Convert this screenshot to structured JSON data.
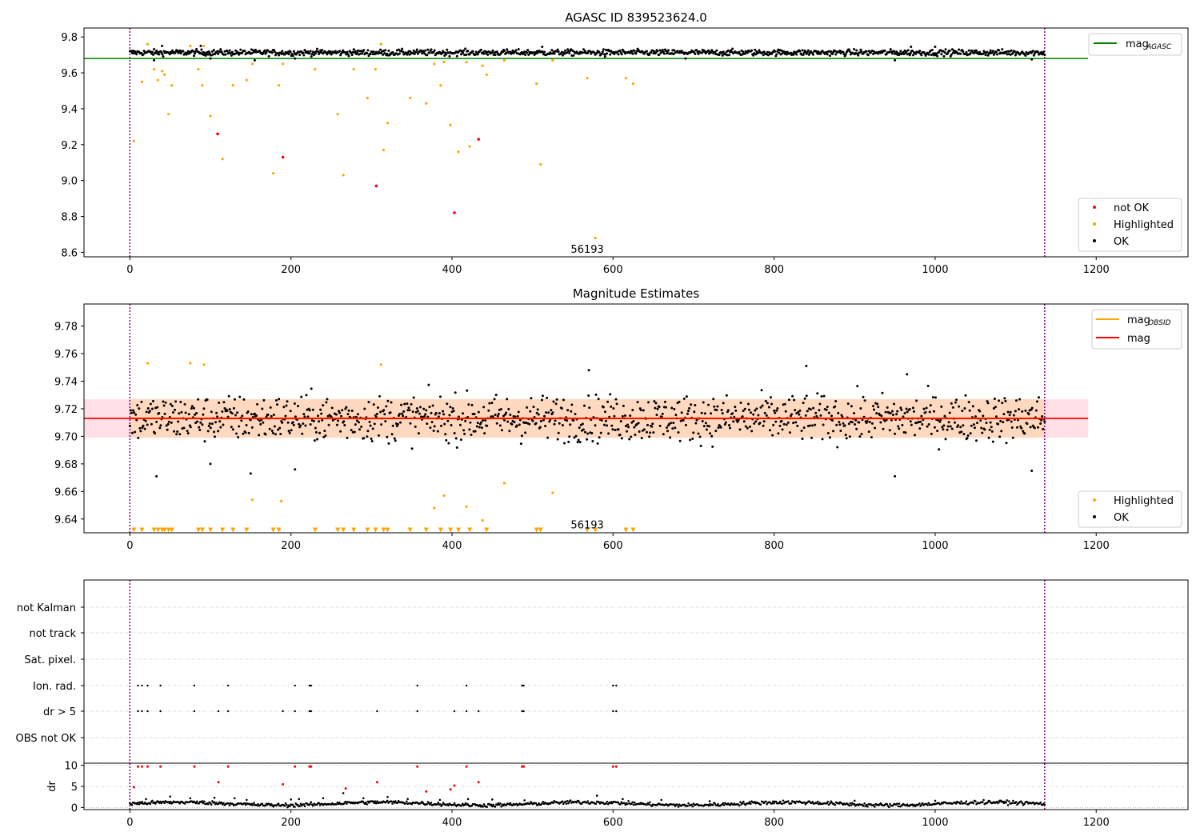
{
  "chart_data": [
    {
      "type": "scatter",
      "title": "AGASC ID 839523624.0",
      "xlim": [
        -57,
        1314
      ],
      "ylim": [
        8.575,
        9.85
      ],
      "xticks": [
        "0",
        "200",
        "400",
        "600",
        "800",
        "1000",
        "1200"
      ],
      "yticks": [
        "8.6",
        "8.8",
        "9.0",
        "9.2",
        "9.4",
        "9.6",
        "9.8"
      ],
      "ytick_values": [
        8.6,
        8.8,
        9.0,
        9.2,
        9.4,
        9.6,
        9.8
      ],
      "vlines": [
        0,
        1136
      ],
      "hline": {
        "label": "mag",
        "sub": "AGASC",
        "y": 9.68,
        "xmax": 1190,
        "color": "#008000"
      },
      "annotation": {
        "text": "56193",
        "x": 568,
        "y": 8.62
      },
      "legend_line_position": "upper right",
      "legend_points_position": "lower right",
      "series": [
        {
          "name": "not OK",
          "color": "#ff0000",
          "points": [
            [
              109,
              9.26
            ],
            [
              190,
              9.13
            ],
            [
              306,
              8.97
            ],
            [
              403,
              8.82
            ],
            [
              433,
              9.23
            ]
          ]
        },
        {
          "name": "Highlighted",
          "color": "#ffa500",
          "points": [
            [
              5,
              9.22
            ],
            [
              15,
              9.55
            ],
            [
              22,
              9.76
            ],
            [
              30,
              9.62
            ],
            [
              35,
              9.56
            ],
            [
              40,
              9.61
            ],
            [
              43,
              9.59
            ],
            [
              48,
              9.37
            ],
            [
              52,
              9.53
            ],
            [
              75,
              9.75
            ],
            [
              85,
              9.62
            ],
            [
              90,
              9.53
            ],
            [
              92,
              9.75
            ],
            [
              100,
              9.36
            ],
            [
              115,
              9.12
            ],
            [
              128,
              9.53
            ],
            [
              145,
              9.56
            ],
            [
              152,
              9.65
            ],
            [
              178,
              9.04
            ],
            [
              185,
              9.53
            ],
            [
              190,
              9.65
            ],
            [
              230,
              9.62
            ],
            [
              258,
              9.37
            ],
            [
              265,
              9.03
            ],
            [
              278,
              9.62
            ],
            [
              295,
              9.46
            ],
            [
              305,
              9.62
            ],
            [
              312,
              9.76
            ],
            [
              315,
              9.17
            ],
            [
              320,
              9.32
            ],
            [
              348,
              9.46
            ],
            [
              368,
              9.43
            ],
            [
              378,
              9.65
            ],
            [
              386,
              9.53
            ],
            [
              390,
              9.66
            ],
            [
              398,
              9.31
            ],
            [
              408,
              9.16
            ],
            [
              418,
              9.66
            ],
            [
              422,
              9.19
            ],
            [
              438,
              9.64
            ],
            [
              443,
              9.59
            ],
            [
              465,
              9.67
            ],
            [
              505,
              9.54
            ],
            [
              510,
              9.09
            ],
            [
              525,
              9.67
            ],
            [
              568,
              9.57
            ],
            [
              578,
              8.68
            ],
            [
              616,
              9.57
            ],
            [
              625,
              9.54
            ]
          ]
        },
        {
          "name": "OK",
          "color": "#000000",
          "mean": 9.713,
          "sd": 0.013,
          "xmin": 0,
          "xmax": 1136,
          "n": 1100,
          "outliers": [
            [
              30,
              9.67
            ],
            [
              100,
              9.68
            ],
            [
              155,
              9.67
            ],
            [
              205,
              9.68
            ],
            [
              590,
              9.69
            ],
            [
              690,
              9.68
            ],
            [
              950,
              9.67
            ],
            [
              1120,
              9.675
            ],
            [
              40,
              9.75
            ],
            [
              88,
              9.75
            ],
            [
              512,
              9.745
            ],
            [
              970,
              9.745
            ],
            [
              1000,
              9.745
            ]
          ]
        }
      ]
    },
    {
      "type": "scatter",
      "title": "Magnitude Estimates",
      "xlim": [
        -57,
        1314
      ],
      "ylim": [
        9.63,
        9.796
      ],
      "xticks": [
        "0",
        "200",
        "400",
        "600",
        "800",
        "1000",
        "1200"
      ],
      "yticks": [
        "9.64",
        "9.66",
        "9.68",
        "9.70",
        "9.72",
        "9.74",
        "9.76",
        "9.78"
      ],
      "ytick_values": [
        9.64,
        9.66,
        9.68,
        9.7,
        9.72,
        9.74,
        9.76,
        9.78
      ],
      "vlines": [
        0,
        1136
      ],
      "lines": [
        {
          "label": "mag",
          "sub": "OBSID",
          "y": 9.713,
          "x0": 0,
          "x1": 1136,
          "color": "#ffa500"
        },
        {
          "label": "mag",
          "y": 9.713,
          "x0": -57,
          "x1": 1190,
          "color": "#ff0000"
        }
      ],
      "bands": [
        {
          "y0": 9.699,
          "y1": 9.727,
          "x0": -57,
          "x1": 1190,
          "color": "#ffe0e6"
        },
        {
          "y0": 9.699,
          "y1": 9.727,
          "x0": 0,
          "x1": 1136,
          "color": "#ffd9bf"
        }
      ],
      "annotation": {
        "text": "56193",
        "x": 568,
        "y": 9.636
      },
      "legend_line_position": "upper right",
      "legend_points_position": "lower right",
      "series": [
        {
          "name": "Highlighted",
          "color": "#ffa500",
          "points": [
            [
              22,
              9.753
            ],
            [
              75,
              9.753
            ],
            [
              92,
              9.752
            ],
            [
              312,
              9.752
            ],
            [
              152,
              9.654
            ],
            [
              188,
              9.653
            ],
            [
              378,
              9.648
            ],
            [
              390,
              9.657
            ],
            [
              418,
              9.649
            ],
            [
              438,
              9.639
            ],
            [
              465,
              9.666
            ],
            [
              525,
              9.659
            ]
          ]
        },
        {
          "name": "",
          "color": "#ffa500",
          "marker": "triangle-down",
          "y": 9.632,
          "x": [
            5,
            15,
            30,
            35,
            40,
            43,
            48,
            52,
            85,
            90,
            100,
            115,
            128,
            145,
            178,
            185,
            230,
            258,
            265,
            278,
            295,
            305,
            315,
            320,
            348,
            368,
            386,
            398,
            408,
            422,
            443,
            505,
            510,
            568,
            578,
            616,
            625
          ]
        },
        {
          "name": "OK",
          "color": "#000000",
          "mean": 9.713,
          "sd": 0.013,
          "xmin": 0,
          "xmax": 1136,
          "n": 1100,
          "outliers": [
            [
              33,
              9.671
            ],
            [
              100,
              9.68
            ],
            [
              150,
              9.673
            ],
            [
              205,
              9.676
            ],
            [
              840,
              9.751
            ],
            [
              950,
              9.671
            ],
            [
              1120,
              9.675
            ],
            [
              965,
              9.745
            ],
            [
              570,
              9.748
            ]
          ]
        }
      ]
    },
    {
      "type": "scatter",
      "title": "",
      "xlim": [
        -57,
        1314
      ],
      "categories": [
        "not Kalman",
        "not track",
        "Sat. pixel.",
        "Ion. rad.",
        "dr > 5",
        "OBS not OK"
      ],
      "xticks": [
        "0",
        "200",
        "400",
        "600",
        "800",
        "1000",
        "1200"
      ],
      "vlines": [
        0,
        1136
      ],
      "flags": {
        "Ion. rad.": [
          10,
          15,
          22,
          38,
          80,
          122,
          205,
          223,
          225,
          357,
          418,
          487,
          489,
          600,
          604
        ],
        "dr > 5": [
          10,
          15,
          22,
          38,
          80,
          110,
          122,
          190,
          205,
          223,
          225,
          307,
          357,
          403,
          418,
          433,
          487,
          489,
          600,
          604
        ]
      }
    },
    {
      "type": "scatter",
      "title": "",
      "ylabel": "dr",
      "xlim": [
        -57,
        1314
      ],
      "ylim": [
        -0.5,
        10.5
      ],
      "yticks": [
        "0",
        "5",
        "10"
      ],
      "ytick_values": [
        0,
        5,
        10
      ],
      "xticks": [
        "0",
        "200",
        "400",
        "600",
        "800",
        "1000",
        "1200"
      ],
      "vlines": [
        0,
        1136
      ],
      "series": [
        {
          "name": "",
          "color": "#ff0000",
          "points": [
            [
              5,
              4.8
            ],
            [
              10,
              9.7
            ],
            [
              15,
              9.7
            ],
            [
              22,
              9.7
            ],
            [
              38,
              9.7
            ],
            [
              80,
              9.7
            ],
            [
              110,
              6.0
            ],
            [
              122,
              9.7
            ],
            [
              190,
              5.5
            ],
            [
              205,
              9.7
            ],
            [
              223,
              9.7
            ],
            [
              225,
              9.7
            ],
            [
              268,
              4.5
            ],
            [
              307,
              6.0
            ],
            [
              357,
              9.7
            ],
            [
              368,
              3.8
            ],
            [
              398,
              4.3
            ],
            [
              403,
              5.2
            ],
            [
              418,
              9.7
            ],
            [
              433,
              6.0
            ],
            [
              487,
              9.7
            ],
            [
              489,
              9.7
            ],
            [
              600,
              9.7
            ],
            [
              604,
              9.7
            ]
          ]
        },
        {
          "name": "",
          "color": "#000000",
          "baseline": 0.9,
          "xmin": 0,
          "xmax": 1136,
          "points": [
            [
              20,
              2.0
            ],
            [
              50,
              2.6
            ],
            [
              75,
              2.2
            ],
            [
              105,
              2.3
            ],
            [
              130,
              2.2
            ],
            [
              145,
              1.8
            ],
            [
              200,
              1.9
            ],
            [
              210,
              2.0
            ],
            [
              240,
              2.2
            ],
            [
              265,
              3.4
            ],
            [
              290,
              2.2
            ],
            [
              320,
              2.5
            ],
            [
              345,
              2.0
            ],
            [
              385,
              1.8
            ],
            [
              420,
              2.0
            ],
            [
              450,
              1.9
            ],
            [
              490,
              1.7
            ],
            [
              580,
              2.8
            ],
            [
              612,
              2.0
            ],
            [
              660,
              1.8
            ],
            [
              720,
              1.5
            ],
            [
              800,
              1.4
            ],
            [
              900,
              1.6
            ],
            [
              1000,
              1.6
            ],
            [
              1080,
              1.6
            ]
          ]
        }
      ]
    }
  ]
}
